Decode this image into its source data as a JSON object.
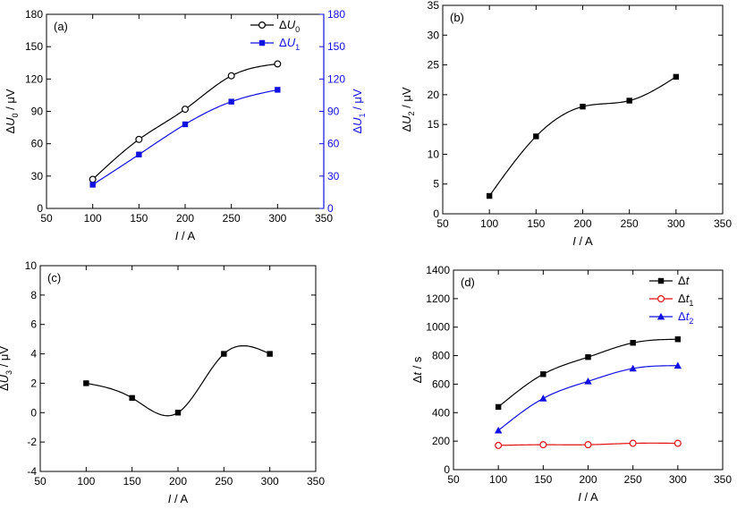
{
  "chart_data": [
    {
      "type": "line",
      "panel_label": "(a)",
      "xlabel": "I / A",
      "ylabel": "ΔU0 / μV",
      "ylabel_right": "ΔU1 / μV",
      "xlim": [
        50,
        350
      ],
      "ylim": [
        0,
        180
      ],
      "ylim_right": [
        0,
        180
      ],
      "xticks": [
        50,
        100,
        150,
        200,
        250,
        300,
        350
      ],
      "yticks": [
        0,
        30,
        60,
        90,
        120,
        150,
        180
      ],
      "legend_position": "top-right",
      "series": [
        {
          "name": "ΔU0",
          "x": [
            100,
            150,
            200,
            250,
            300
          ],
          "values": [
            27,
            64,
            92,
            123,
            134
          ],
          "marker": "open-circle",
          "color": "#000000",
          "axis": "left"
        },
        {
          "name": "ΔU1",
          "x": [
            100,
            150,
            200,
            250,
            300
          ],
          "values": [
            22,
            50,
            78,
            99,
            110
          ],
          "marker": "filled-square",
          "color": "#1010e0",
          "axis": "right"
        }
      ]
    },
    {
      "type": "line",
      "panel_label": "(b)",
      "xlabel": "I / A",
      "ylabel": "ΔU2 / μV",
      "xlim": [
        50,
        350
      ],
      "ylim": [
        0,
        35
      ],
      "xticks": [
        50,
        100,
        150,
        200,
        250,
        300,
        350
      ],
      "yticks": [
        0,
        5,
        10,
        15,
        20,
        25,
        30,
        35
      ],
      "series": [
        {
          "x": [
            100,
            150,
            200,
            250,
            300
          ],
          "values": [
            3,
            13,
            18,
            19,
            23
          ],
          "marker": "filled-square",
          "color": "#000000"
        }
      ]
    },
    {
      "type": "line",
      "panel_label": "(c)",
      "xlabel": "I / A",
      "ylabel": "ΔU3 / μV",
      "xlim": [
        50,
        350
      ],
      "ylim": [
        -4,
        10
      ],
      "xticks": [
        50,
        100,
        150,
        200,
        250,
        300,
        350
      ],
      "yticks": [
        -4,
        -2,
        0,
        2,
        4,
        6,
        8,
        10
      ],
      "series": [
        {
          "x": [
            100,
            150,
            200,
            250,
            300
          ],
          "values": [
            2,
            1,
            0,
            4,
            4
          ],
          "marker": "filled-square",
          "color": "#000000"
        }
      ]
    },
    {
      "type": "line",
      "panel_label": "(d)",
      "xlabel": "I / A",
      "ylabel": "Δt / s",
      "xlim": [
        50,
        350
      ],
      "ylim": [
        0,
        1400
      ],
      "xticks": [
        50,
        100,
        150,
        200,
        250,
        300,
        350
      ],
      "yticks": [
        0,
        200,
        400,
        600,
        800,
        1000,
        1200,
        1400
      ],
      "legend_position": "top-right",
      "series": [
        {
          "name": "Δt",
          "x": [
            100,
            150,
            200,
            250,
            300
          ],
          "values": [
            440,
            670,
            790,
            890,
            915
          ],
          "marker": "filled-square",
          "color": "#000000"
        },
        {
          "name": "Δt1",
          "x": [
            100,
            150,
            200,
            250,
            300
          ],
          "values": [
            170,
            175,
            175,
            185,
            185
          ],
          "marker": "open-circle",
          "color": "#e01010"
        },
        {
          "name": "Δt2",
          "x": [
            100,
            150,
            200,
            250,
            300
          ],
          "values": [
            275,
            500,
            620,
            710,
            730
          ],
          "marker": "filled-triangle",
          "color": "#1010e0"
        }
      ]
    }
  ]
}
